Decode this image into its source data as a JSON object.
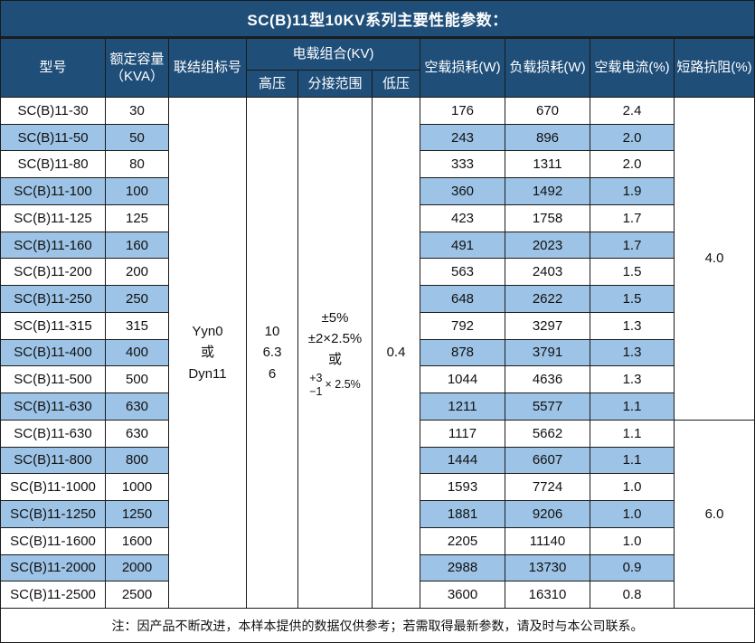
{
  "title": "SC(B)11型10KV系列主要性能参数：",
  "colors": {
    "header_bg": "#1F4E79",
    "row_shaded_bg": "#9DC3E6",
    "row_bg": "#FFFFFF",
    "header_text": "#FFFFFF",
    "border": "#1A1A1A"
  },
  "header": {
    "model": "型号",
    "capacity_line1": "额定容量",
    "capacity_line2": "（KVA）",
    "connection": "联结组标号",
    "voltage_group": "电载组合(KV)",
    "hv": "高压",
    "tap_range": "分接范围",
    "lv": "低压",
    "no_load_loss": "空载损耗(W)",
    "load_loss": "负载损耗(W)",
    "no_load_current": "空载电流(%)",
    "impedance": "短路抗阻(%)"
  },
  "merged": {
    "connection_lines": [
      "Yyn0",
      "或",
      "Dyn11"
    ],
    "hv_lines": [
      "10",
      "6.3",
      "6"
    ],
    "tap_lines": [
      "±5%",
      "±2×2.5%",
      "或"
    ],
    "tap_fraction": {
      "top": "+3",
      "bottom": "−1",
      "suffix": "× 2.5%"
    },
    "lv": "0.4",
    "impedance_groups": [
      {
        "value": "4.0",
        "span_rows": 12
      },
      {
        "value": "6.0",
        "span_rows": 7
      }
    ]
  },
  "rows": [
    {
      "model": "SC(B)11-30",
      "kva": "30",
      "no_load": "176",
      "load": "670",
      "current": "2.4"
    },
    {
      "model": "SC(B)11-50",
      "kva": "50",
      "no_load": "243",
      "load": "896",
      "current": "2.0"
    },
    {
      "model": "SC(B)11-80",
      "kva": "80",
      "no_load": "333",
      "load": "1311",
      "current": "2.0"
    },
    {
      "model": "SC(B)11-100",
      "kva": "100",
      "no_load": "360",
      "load": "1492",
      "current": "1.9"
    },
    {
      "model": "SC(B)11-125",
      "kva": "125",
      "no_load": "423",
      "load": "1758",
      "current": "1.7"
    },
    {
      "model": "SC(B)11-160",
      "kva": "160",
      "no_load": "491",
      "load": "2023",
      "current": "1.7"
    },
    {
      "model": "SC(B)11-200",
      "kva": "200",
      "no_load": "563",
      "load": "2403",
      "current": "1.5"
    },
    {
      "model": "SC(B)11-250",
      "kva": "250",
      "no_load": "648",
      "load": "2622",
      "current": "1.5"
    },
    {
      "model": "SC(B)11-315",
      "kva": "315",
      "no_load": "792",
      "load": "3297",
      "current": "1.3"
    },
    {
      "model": "SC(B)11-400",
      "kva": "400",
      "no_load": "878",
      "load": "3791",
      "current": "1.3"
    },
    {
      "model": "SC(B)11-500",
      "kva": "500",
      "no_load": "1044",
      "load": "4636",
      "current": "1.3"
    },
    {
      "model": "SC(B)11-630",
      "kva": "630",
      "no_load": "1211",
      "load": "5577",
      "current": "1.1"
    },
    {
      "model": "SC(B)11-630",
      "kva": "630",
      "no_load": "1117",
      "load": "5662",
      "current": "1.1"
    },
    {
      "model": "SC(B)11-800",
      "kva": "800",
      "no_load": "1444",
      "load": "6607",
      "current": "1.1"
    },
    {
      "model": "SC(B)11-1000",
      "kva": "1000",
      "no_load": "1593",
      "load": "7724",
      "current": "1.0"
    },
    {
      "model": "SC(B)11-1250",
      "kva": "1250",
      "no_load": "1881",
      "load": "9206",
      "current": "1.0"
    },
    {
      "model": "SC(B)11-1600",
      "kva": "1600",
      "no_load": "2205",
      "load": "11140",
      "current": "1.0"
    },
    {
      "model": "SC(B)11-2000",
      "kva": "2000",
      "no_load": "2988",
      "load": "13730",
      "current": "0.9"
    },
    {
      "model": "SC(B)11-2500",
      "kva": "2500",
      "no_load": "3600",
      "load": "16310",
      "current": "0.8"
    }
  ],
  "footer_note": "注：因产品不断改进，本样本提供的数据仅供参考；若需取得最新参数，请及时与本公司联系。"
}
